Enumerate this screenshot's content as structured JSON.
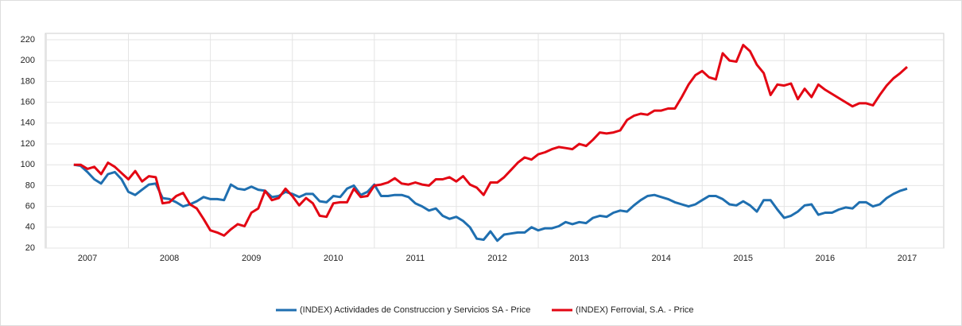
{
  "chart_data": {
    "type": "line",
    "categories": [
      null,
      null,
      "2007",
      null,
      null,
      null,
      null,
      null,
      null,
      null,
      null,
      null,
      null,
      null,
      "2008",
      null,
      null,
      null,
      null,
      null,
      null,
      null,
      null,
      null,
      null,
      null,
      "2009",
      null,
      null,
      null,
      null,
      null,
      null,
      null,
      null,
      null,
      null,
      null,
      "2010",
      null,
      null,
      null,
      null,
      null,
      null,
      null,
      null,
      null,
      null,
      null,
      "2011",
      null,
      null,
      null,
      null,
      null,
      null,
      null,
      null,
      null,
      null,
      null,
      "2012",
      null,
      null,
      null,
      null,
      null,
      null,
      null,
      null,
      null,
      null,
      null,
      "2013",
      null,
      null,
      null,
      null,
      null,
      null,
      null,
      null,
      null,
      null,
      null,
      "2014",
      null,
      null,
      null,
      null,
      null,
      null,
      null,
      null,
      null,
      null,
      null,
      "2015",
      null,
      null,
      null,
      null,
      null,
      null,
      null,
      null,
      null,
      null,
      null,
      "2016",
      null,
      null,
      null,
      null,
      null,
      null,
      null,
      null,
      null,
      null,
      null,
      "2017"
    ],
    "series": [
      {
        "name": "(INDEX) Actividades de Construccion y Servicios SA - Price",
        "color": "#1f6fb0",
        "values": [
          100,
          99,
          93,
          86,
          82,
          91,
          93,
          86,
          74,
          71,
          76,
          81,
          82,
          68,
          67,
          64,
          60,
          62,
          65,
          69,
          67,
          67,
          66,
          81,
          77,
          76,
          79,
          76,
          75,
          69,
          70,
          74,
          72,
          69,
          72,
          72,
          65,
          64,
          70,
          69,
          77,
          80,
          71,
          74,
          81,
          70,
          70,
          71,
          71,
          69,
          63,
          60,
          56,
          58,
          51,
          48,
          50,
          46,
          40,
          29,
          28,
          36,
          27,
          33,
          34,
          35,
          35,
          40,
          37,
          39,
          39,
          41,
          45,
          43,
          45,
          44,
          49,
          51,
          50,
          54,
          56,
          55,
          61,
          66,
          70,
          71,
          69,
          67,
          64,
          62,
          60,
          62,
          66,
          70,
          70,
          67,
          62,
          61,
          65,
          61,
          55,
          66,
          66,
          57,
          49,
          51,
          55,
          61,
          62,
          52,
          54,
          54,
          57,
          59,
          58,
          64,
          64,
          60,
          62,
          68,
          72,
          75,
          77
        ]
      },
      {
        "name": "(INDEX) Ferrovial, S.A. - Price",
        "color": "#e30613",
        "values": [
          100,
          100,
          96,
          98,
          91,
          102,
          98,
          92,
          86,
          94,
          84,
          89,
          88,
          63,
          64,
          70,
          73,
          62,
          58,
          48,
          37,
          35,
          32,
          38,
          43,
          41,
          54,
          58,
          75,
          66,
          68,
          77,
          70,
          61,
          68,
          63,
          51,
          50,
          63,
          64,
          64,
          77,
          69,
          70,
          80,
          81,
          83,
          87,
          82,
          81,
          83,
          81,
          80,
          86,
          86,
          88,
          84,
          89,
          81,
          78,
          71,
          83,
          83,
          88,
          95,
          102,
          107,
          105,
          110,
          112,
          115,
          117,
          116,
          115,
          120,
          118,
          124,
          131,
          130,
          131,
          133,
          143,
          147,
          149,
          148,
          152,
          152,
          154,
          154,
          165,
          177,
          186,
          190,
          184,
          182,
          207,
          200,
          199,
          215,
          209,
          196,
          188,
          167,
          177,
          176,
          178,
          163,
          173,
          165,
          177,
          172,
          168,
          164,
          160,
          156,
          159,
          159,
          157,
          167,
          176,
          183,
          188,
          194
        ]
      }
    ],
    "ylim": [
      20,
      220
    ],
    "yticks": [
      20,
      40,
      60,
      80,
      100,
      120,
      140,
      160,
      180,
      200,
      220
    ],
    "grid": true,
    "legend": "bottom"
  }
}
